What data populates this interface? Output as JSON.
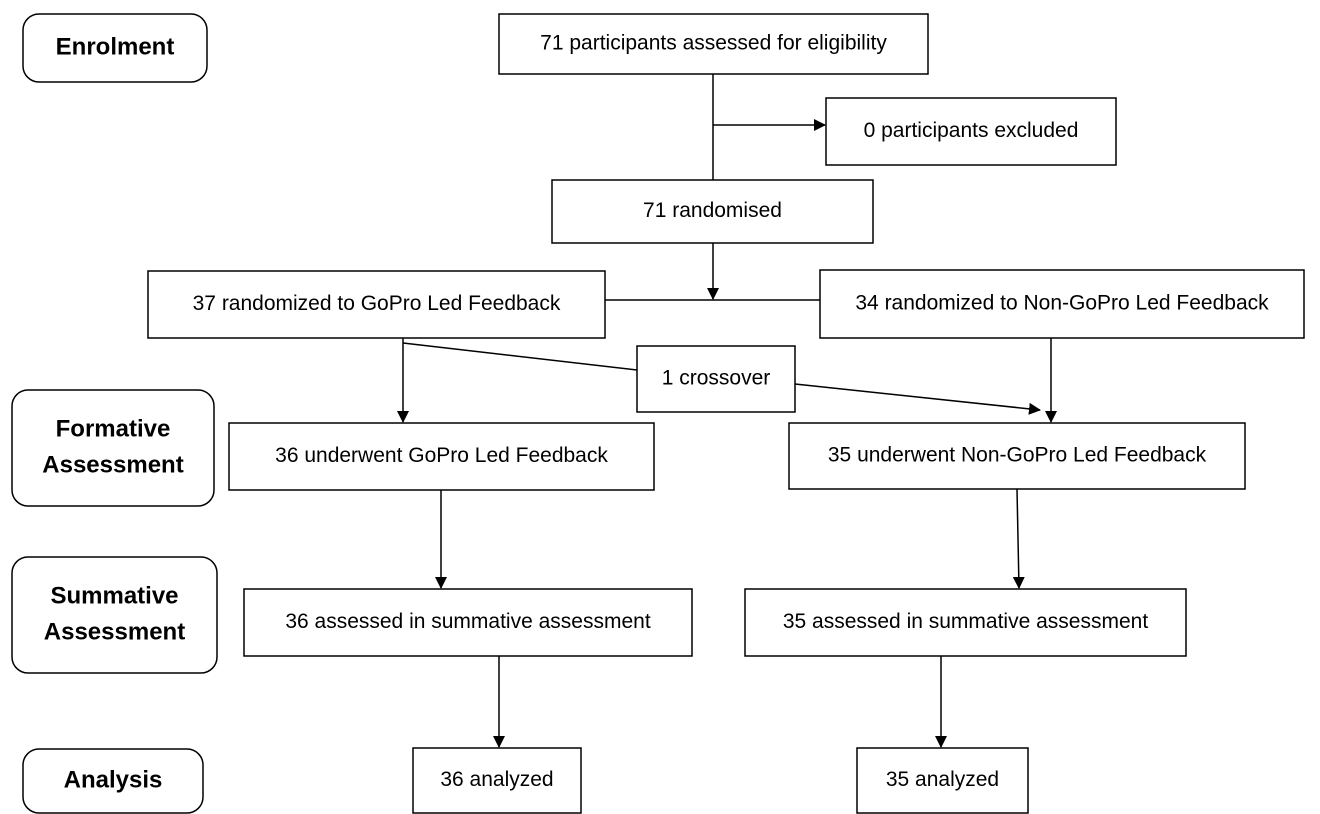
{
  "stages": [
    {
      "lines": [
        "Enrolment"
      ]
    },
    {
      "lines": [
        "Formative",
        "Assessment"
      ]
    },
    {
      "lines": [
        "Summative",
        "Assessment"
      ]
    },
    {
      "lines": [
        "Analysis"
      ]
    }
  ],
  "nodes": [
    {
      "label": "71 participants assessed for eligibility"
    },
    {
      "label": "0 participants excluded"
    },
    {
      "label": "71 randomised"
    },
    {
      "label": "37 randomized to GoPro Led Feedback"
    },
    {
      "label": "34 randomized to Non-GoPro Led Feedback"
    },
    {
      "label": "1 crossover"
    },
    {
      "label": "36 underwent GoPro Led Feedback"
    },
    {
      "label": "35 underwent Non-GoPro Led Feedback"
    },
    {
      "label": "36 assessed in summative assessment"
    },
    {
      "label": "35 assessed in summative assessment"
    },
    {
      "label": "36 analyzed"
    },
    {
      "label": "35 analyzed"
    }
  ]
}
